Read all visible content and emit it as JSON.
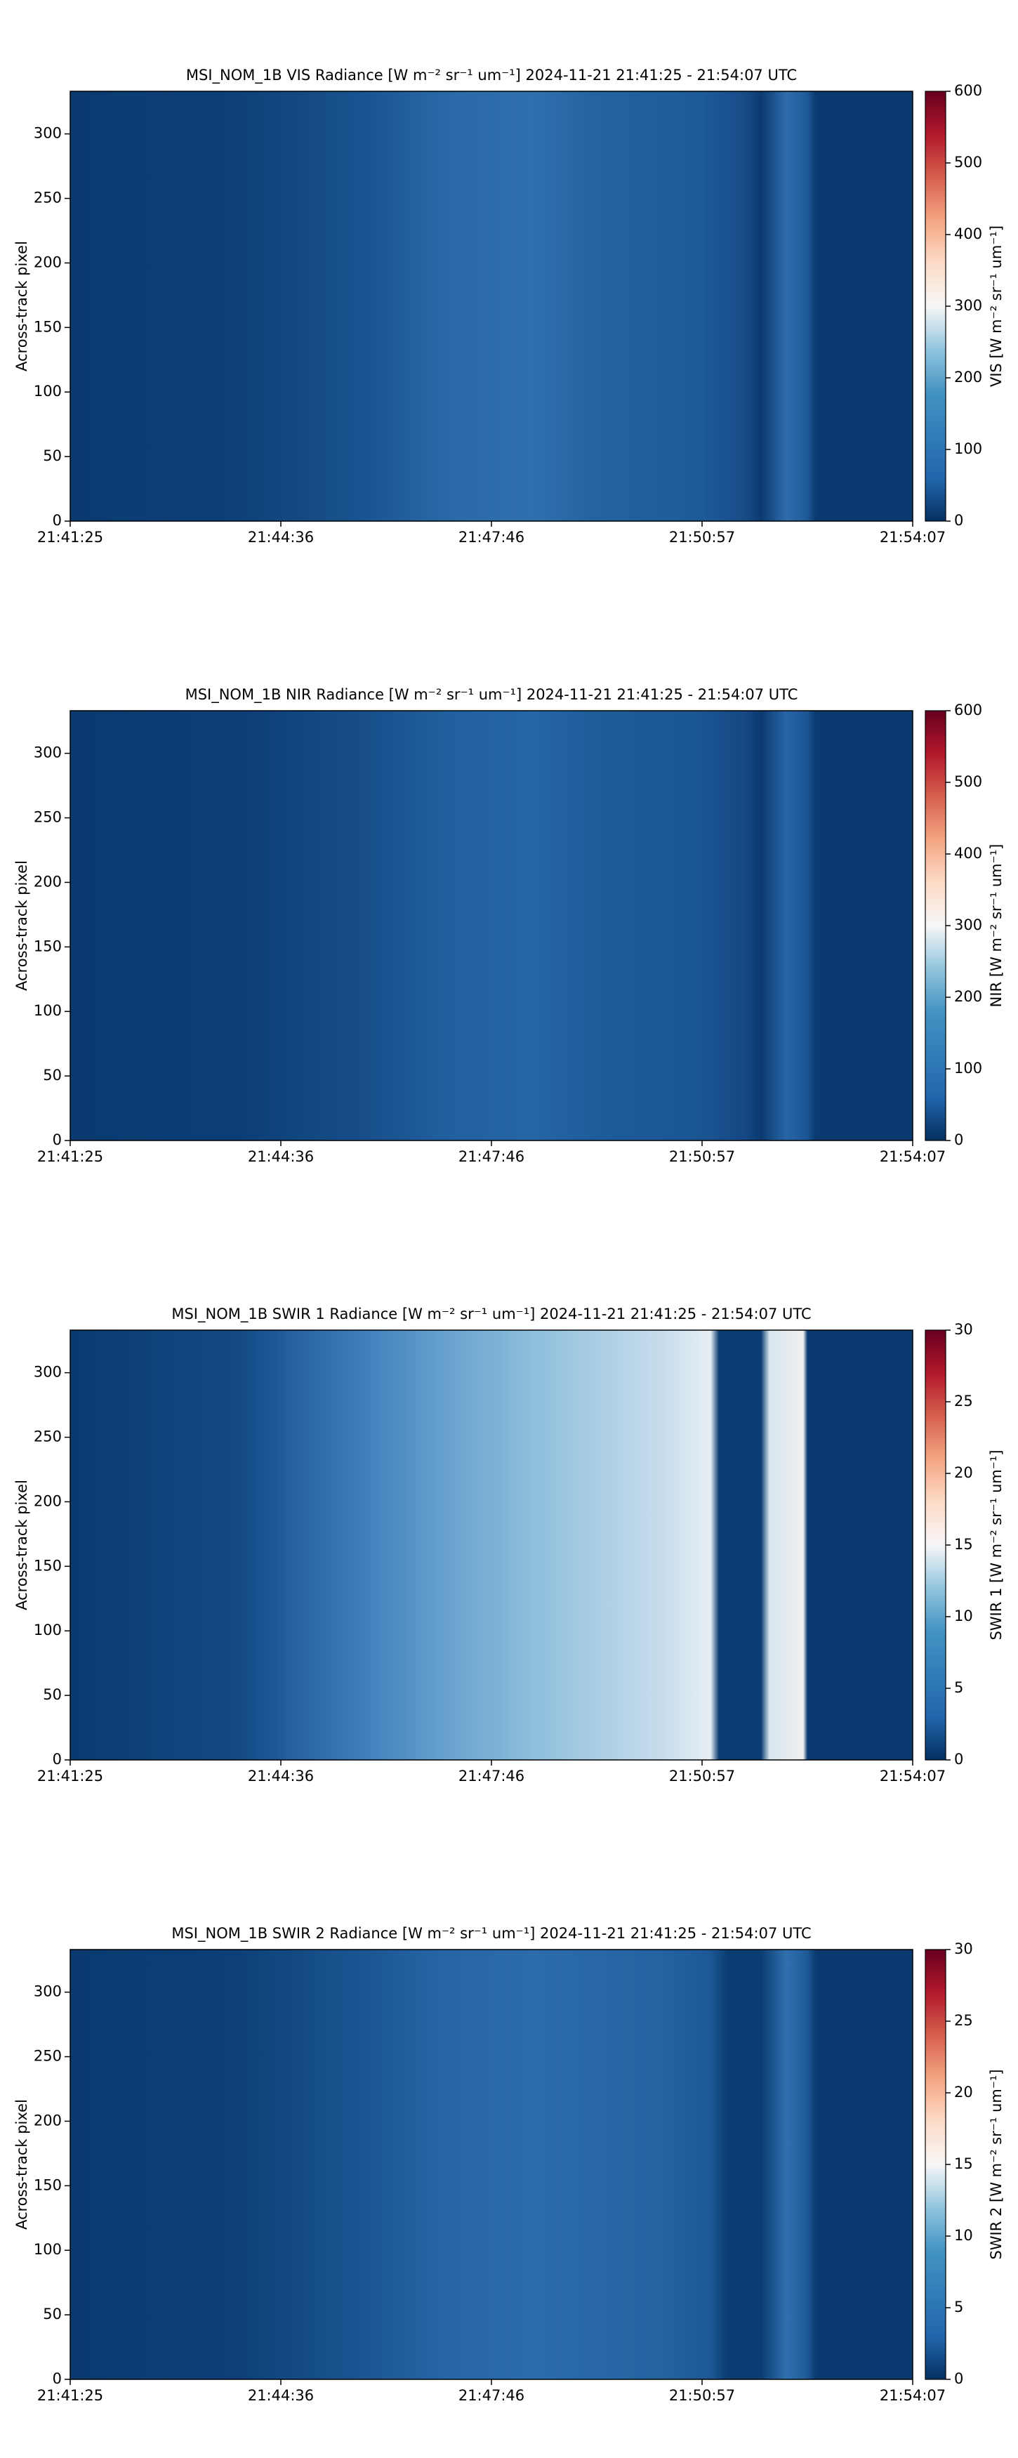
{
  "chart_data": [
    {
      "type": "heatmap",
      "title": "MSI_NOM_1B VIS Radiance [W m⁻² sr⁻¹ um⁻¹]    2024-11-21    21:41:25 - 21:54:07 UTC",
      "ylabel": "Across-track pixel",
      "xticks": [
        "21:41:25",
        "21:44:36",
        "21:47:46",
        "21:50:57",
        "21:54:07"
      ],
      "ylim": [
        0,
        333
      ],
      "yticks": [
        0,
        50,
        100,
        150,
        200,
        250,
        300
      ],
      "colorbar_label": "VIS [W m⁻² sr⁻¹ um⁻¹]",
      "clim": [
        0,
        600
      ],
      "cticks": [
        0,
        100,
        200,
        300,
        400,
        500,
        600
      ],
      "colormap": "RdBu_r"
    },
    {
      "type": "heatmap",
      "title": "MSI_NOM_1B NIR Radiance [W m⁻² sr⁻¹ um⁻¹]    2024-11-21    21:41:25 - 21:54:07 UTC",
      "ylabel": "Across-track pixel",
      "xticks": [
        "21:41:25",
        "21:44:36",
        "21:47:46",
        "21:50:57",
        "21:54:07"
      ],
      "ylim": [
        0,
        333
      ],
      "yticks": [
        0,
        50,
        100,
        150,
        200,
        250,
        300
      ],
      "colorbar_label": "NIR [W m⁻² sr⁻¹ um⁻¹]",
      "clim": [
        0,
        600
      ],
      "cticks": [
        0,
        100,
        200,
        300,
        400,
        500,
        600
      ],
      "colormap": "RdBu_r"
    },
    {
      "type": "heatmap",
      "title": "MSI_NOM_1B SWIR 1 Radiance [W m⁻² sr⁻¹ um⁻¹]    2024-11-21    21:41:25 - 21:54:07 UTC",
      "ylabel": "Across-track pixel",
      "xticks": [
        "21:41:25",
        "21:44:36",
        "21:47:46",
        "21:50:57",
        "21:54:07"
      ],
      "ylim": [
        0,
        333
      ],
      "yticks": [
        0,
        50,
        100,
        150,
        200,
        250,
        300
      ],
      "colorbar_label": "SWIR 1 [W m⁻² sr⁻¹ um⁻¹]",
      "clim": [
        0,
        30
      ],
      "cticks": [
        0,
        5,
        10,
        15,
        20,
        25,
        30
      ],
      "colormap": "RdBu_r"
    },
    {
      "type": "heatmap",
      "title": "MSI_NOM_1B SWIR 2 Radiance [W m⁻² sr⁻¹ um⁻¹]    2024-11-21    21:41:25 - 21:54:07 UTC",
      "ylabel": "Across-track pixel",
      "xticks": [
        "21:41:25",
        "21:44:36",
        "21:47:46",
        "21:50:57",
        "21:54:07"
      ],
      "ylim": [
        0,
        333
      ],
      "yticks": [
        0,
        50,
        100,
        150,
        200,
        250,
        300
      ],
      "colorbar_label": "SWIR 2 [W m⁻² sr⁻¹ um⁻¹]",
      "clim": [
        0,
        30
      ],
      "cticks": [
        0,
        5,
        10,
        15,
        20,
        25,
        30
      ],
      "colormap": "RdBu_r"
    }
  ]
}
